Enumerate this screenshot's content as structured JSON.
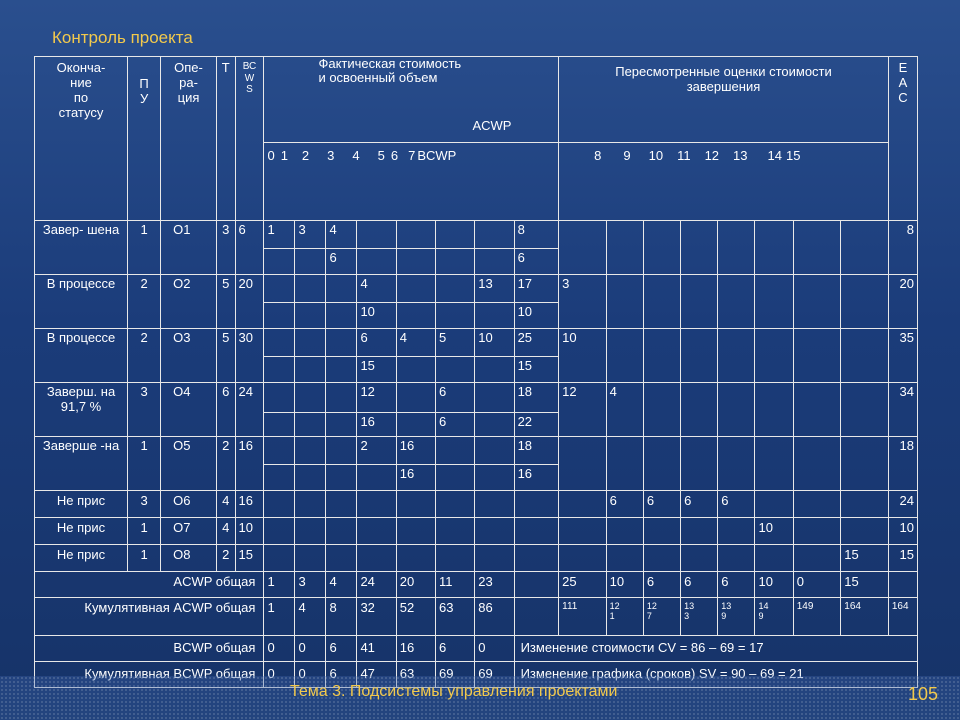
{
  "title": "Контроль проекта",
  "headers": {
    "status": "Оконча-\nние\nпо\nстатусу",
    "pu": "П\nУ",
    "op": "Опе-\nра-\nция",
    "t": "Т",
    "bcws": "ВС\nW\nS",
    "actual_title": "Фактическая стоимость\nи освоенный объем",
    "acwp_sub": "ACWP",
    "revised_title": "Пересмотренные оценки стоимости\nзавершения",
    "eac": "Е\nА\nС"
  },
  "period_labels_left": [
    "0",
    "1",
    "2",
    "3",
    "4",
    "5",
    "6",
    "7",
    "BCWP"
  ],
  "period_labels_right": [
    "8",
    "9",
    "10",
    "11",
    "12",
    "13",
    "14",
    "15"
  ],
  "rows": [
    {
      "status": "Завер-\nшена",
      "pu": "1",
      "op": "О1",
      "t": "3",
      "bcws": "6",
      "eac": "8",
      "acwp": [
        "1",
        "3",
        "4",
        "",
        "",
        "",
        "",
        "8"
      ],
      "bcwp": [
        "",
        "",
        "6",
        "",
        "",
        "",
        "",
        "6"
      ],
      "revised": [
        "",
        "",
        "",
        "",
        "",
        "",
        "",
        "",
        ""
      ]
    },
    {
      "status": "В\nпроцессе",
      "pu": "2",
      "op": "О2",
      "t": "5",
      "bcws": "20",
      "eac": "20",
      "acwp": [
        "",
        "",
        "",
        "4",
        "",
        "",
        "13",
        "17"
      ],
      "bcwp": [
        "",
        "",
        "",
        "10",
        "",
        "",
        "",
        "10"
      ],
      "revised": [
        "3",
        "",
        "",
        "",
        "",
        "",
        "",
        "",
        ""
      ]
    },
    {
      "status": "В\nпроцессе",
      "pu": "2",
      "op": "О3",
      "t": "5",
      "bcws": "30",
      "eac": "35",
      "acwp": [
        "",
        "",
        "",
        "6",
        "4",
        "5",
        "10",
        "25"
      ],
      "bcwp": [
        "",
        "",
        "",
        "15",
        "",
        "",
        "",
        "15"
      ],
      "revised": [
        "10",
        "",
        "",
        "",
        "",
        "",
        "",
        "",
        ""
      ]
    },
    {
      "status": "Заверш.\nна\n91,7 %",
      "pu": "3",
      "op": "О4",
      "t": "6",
      "bcws": "24",
      "eac": "34",
      "acwp": [
        "",
        "",
        "",
        "12",
        "",
        "6",
        "",
        "18"
      ],
      "bcwp": [
        "",
        "",
        "",
        "16",
        "",
        "6",
        "",
        "22"
      ],
      "revised": [
        "12",
        "4",
        "",
        "",
        "",
        "",
        "",
        "",
        ""
      ]
    },
    {
      "status": "Заверше\n-на",
      "pu": "1",
      "op": "О5",
      "t": "2",
      "bcws": "16",
      "eac": "18",
      "acwp": [
        "",
        "",
        "",
        "2",
        "16",
        "",
        "",
        "18"
      ],
      "bcwp": [
        "",
        "",
        "",
        "",
        "16",
        "",
        "",
        "16"
      ],
      "revised": [
        "",
        "",
        "",
        "",
        "",
        "",
        "",
        "",
        ""
      ]
    }
  ],
  "single_rows": [
    {
      "status": "Не прис",
      "pu": "3",
      "op": "О6",
      "t": "4",
      "bcws": "16",
      "eac": "24",
      "revised": [
        "",
        "6",
        "6",
        "6",
        "6",
        "",
        "",
        "",
        ""
      ]
    },
    {
      "status": "Не прис",
      "pu": "1",
      "op": "О7",
      "t": "4",
      "bcws": "10",
      "eac": "10",
      "revised": [
        "",
        "",
        "",
        "",
        "",
        "10",
        "",
        "",
        ""
      ]
    },
    {
      "status": "Не прис",
      "pu": "1",
      "op": "О8",
      "t": "2",
      "bcws": "15",
      "eac": "15",
      "revised": [
        "",
        "",
        "",
        "",
        "",
        "",
        "",
        "15",
        ""
      ]
    }
  ],
  "totals": {
    "acwp_label": "ACWP общая",
    "acwp": [
      "1",
      "3",
      "4",
      "24",
      "20",
      "11",
      "23",
      ""
    ],
    "acwp_right": [
      "25",
      "10",
      "6",
      "6",
      "6",
      "10",
      "0",
      "15",
      ""
    ],
    "cum_acwp_label": "Кумулятивная ACWP общая",
    "cum_acwp": [
      "1",
      "4",
      "8",
      "32",
      "52",
      "63",
      "86",
      ""
    ],
    "cum_acwp_right": [
      "111",
      "12\n1",
      "12\n7",
      "13\n3",
      "13\n9",
      "14\n9",
      "149",
      "164",
      "164"
    ],
    "bcwp_label": "BCWP общая",
    "bcwp": [
      "0",
      "0",
      "6",
      "41",
      "16",
      "6",
      "0"
    ],
    "cv_text": "Изменение стоимости CV = 86 – 69 = 17",
    "cum_bcwp_label": "Кумулятивная BCWP общая",
    "cum_bcwp": [
      "0",
      "0",
      "6",
      "47",
      "63",
      "69",
      "69"
    ],
    "sv_text": "Изменение графика (сроков) SV = 90 – 69 = 21"
  },
  "footer": {
    "topic": "Тема 3. Подсистемы управления проектами",
    "page": "105"
  }
}
